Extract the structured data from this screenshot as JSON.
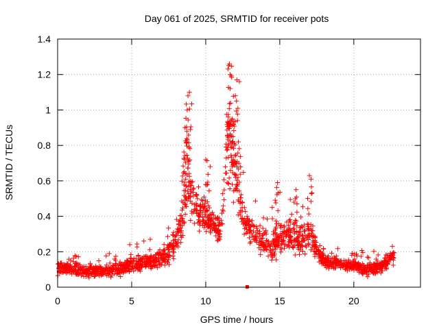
{
  "chart_data": {
    "type": "scatter",
    "title": "Day 061 of 2025, SRMTID for receiver pots",
    "xlabel": "GPS time / hours",
    "ylabel": "SRMTID / TECUs",
    "xlim": [
      0,
      24.5
    ],
    "ylim": [
      0,
      1.4
    ],
    "x_ticks": [
      0,
      5,
      10,
      15,
      20
    ],
    "x_tick_labels": [
      "0",
      "5",
      "10",
      "15",
      "20"
    ],
    "y_ticks": [
      0,
      0.2,
      0.4,
      0.6,
      0.8,
      1.0,
      1.2,
      1.4
    ],
    "y_tick_labels": [
      "0",
      "0.2",
      "0.4",
      "0.6",
      "0.8",
      "1",
      "1.2",
      "1.4"
    ],
    "grid": true,
    "marker": "plus",
    "color": "#ff0000",
    "x_max_data": 22.75,
    "series": [
      {
        "name": "SRMTID",
        "profile_x": [
          0,
          1,
          2,
          3,
          4,
          5,
          6,
          7,
          7.5,
          8,
          8.5,
          8.8,
          9,
          9.5,
          10,
          10.5,
          11,
          11.3,
          11.6,
          12,
          12.5,
          13,
          13.5,
          14,
          14.5,
          15,
          15.5,
          16,
          16.5,
          17,
          17.5,
          18,
          19,
          20,
          21,
          22,
          22.75
        ],
        "profile_y": [
          0.11,
          0.1,
          0.09,
          0.09,
          0.1,
          0.13,
          0.14,
          0.16,
          0.19,
          0.25,
          0.45,
          0.62,
          0.5,
          0.42,
          0.4,
          0.35,
          0.32,
          0.65,
          0.85,
          0.7,
          0.38,
          0.32,
          0.28,
          0.24,
          0.23,
          0.26,
          0.3,
          0.28,
          0.25,
          0.32,
          0.2,
          0.15,
          0.13,
          0.12,
          0.1,
          0.12,
          0.18
        ],
        "spread_y": [
          0.05,
          0.05,
          0.05,
          0.05,
          0.05,
          0.06,
          0.06,
          0.07,
          0.08,
          0.12,
          0.2,
          0.3,
          0.18,
          0.15,
          0.15,
          0.12,
          0.12,
          0.3,
          0.3,
          0.25,
          0.12,
          0.1,
          0.1,
          0.1,
          0.12,
          0.12,
          0.14,
          0.14,
          0.12,
          0.14,
          0.08,
          0.06,
          0.05,
          0.05,
          0.05,
          0.06,
          0.06
        ],
        "peaks": [
          {
            "x": 8.75,
            "y": 1.0
          },
          {
            "x": 8.8,
            "y": 1.08
          },
          {
            "x": 8.9,
            "y": 1.1
          },
          {
            "x": 8.6,
            "y": 0.9
          },
          {
            "x": 11.55,
            "y": 1.25
          },
          {
            "x": 11.6,
            "y": 1.26
          },
          {
            "x": 11.65,
            "y": 1.2
          },
          {
            "x": 12.1,
            "y": 1.17
          },
          {
            "x": 12.0,
            "y": 1.08
          },
          {
            "x": 11.8,
            "y": 0.95
          },
          {
            "x": 12.2,
            "y": 0.82
          },
          {
            "x": 17.0,
            "y": 0.63
          },
          {
            "x": 14.85,
            "y": 0.59
          },
          {
            "x": 16.1,
            "y": 0.55
          },
          {
            "x": 10.3,
            "y": 0.68
          },
          {
            "x": 10.0,
            "y": 0.72
          }
        ],
        "isolated_points": [
          {
            "x": 12.8,
            "y": 0.0
          }
        ]
      }
    ]
  }
}
